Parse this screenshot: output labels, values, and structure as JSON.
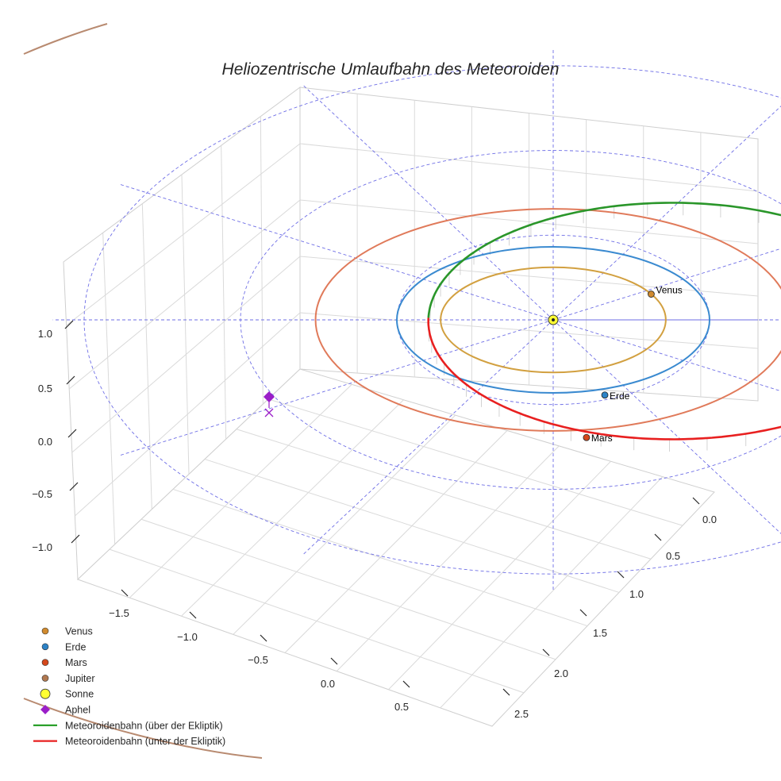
{
  "chart_data": {
    "type": "scatter",
    "title": "Heliozentrische Umlaufbahn des Meteoroiden",
    "projection": "3d",
    "x_ticks": [
      "−1.5",
      "−1.0",
      "−0.5",
      "0.0",
      "0.5"
    ],
    "y_ticks": [
      "0.0",
      "0.5",
      "1.0",
      "1.5",
      "2.0",
      "2.5"
    ],
    "z_ticks": [
      "1.0",
      "0.5",
      "0.0",
      "−0.5",
      "−1.0"
    ],
    "grid": true,
    "legend_position": "lower-left",
    "planets": [
      {
        "name": "Venus",
        "label": "Venus",
        "a": 0.72,
        "angle_deg": 33,
        "color": "#d08a2e",
        "orbit_color": "#d2a040"
      },
      {
        "name": "Erde",
        "label": "Erde",
        "a": 1.0,
        "angle_deg": 102,
        "color": "#2c82c6",
        "orbit_color": "#3a8ad0"
      },
      {
        "name": "Mars",
        "label": "Mars",
        "a": 1.52,
        "angle_deg": 157,
        "color": "#d4481c",
        "orbit_color": "#e07a5a"
      },
      {
        "name": "Jupiter",
        "label": "",
        "a": 5.2,
        "color": "#b07850",
        "orbit_color": "#b88a70"
      }
    ],
    "sun": {
      "name": "Sonne",
      "x": 0,
      "y": 0,
      "z": 0,
      "color": "#ffff33"
    },
    "meteoroid_orbit": {
      "a": 1.56,
      "e": 0.36,
      "inclination_deg": 3,
      "above_color": "#2a962a",
      "below_color": "#e82020"
    },
    "aphelion": {
      "name": "Aphel",
      "color": "#9a1ec8"
    },
    "legend": [
      {
        "label": "Venus",
        "marker": "circle",
        "color": "#d08a2e"
      },
      {
        "label": "Erde",
        "marker": "circle",
        "color": "#2c82c6"
      },
      {
        "label": "Mars",
        "marker": "circle",
        "color": "#d4481c"
      },
      {
        "label": "Jupiter",
        "marker": "circle",
        "color": "#b07850"
      },
      {
        "label": "Sonne",
        "marker": "big-circle",
        "color": "#ffff33"
      },
      {
        "label": "Aphel",
        "marker": "diamond",
        "color": "#9a1ec8"
      },
      {
        "label": "Meteoroidenbahn (über der Ekliptik)",
        "marker": "line",
        "color": "#1e9a1e"
      },
      {
        "label": "Meteoroidenbahn (unter der Ekliptik)",
        "marker": "line",
        "color": "#e82020"
      }
    ]
  }
}
